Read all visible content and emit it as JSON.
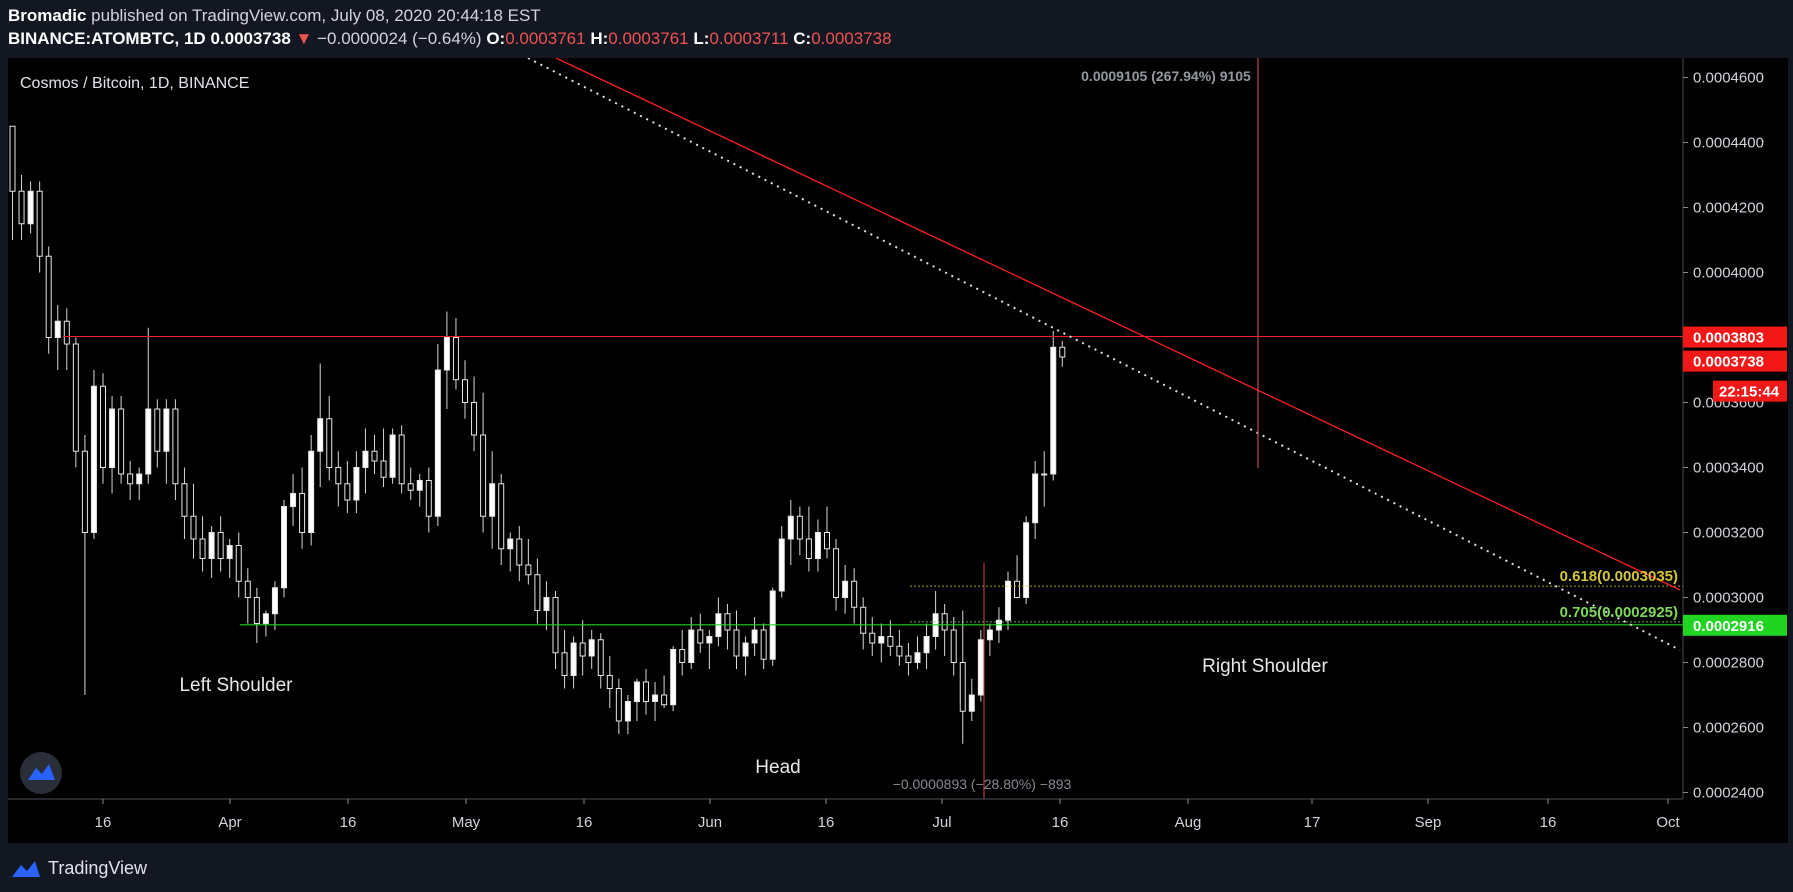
{
  "header": {
    "author": "Bromadic",
    "published_text": "published on TradingView.com, July 08, 2020 20:44:18 EST",
    "symbol": "BINANCE:ATOMBTC, 1D",
    "last_price": "0.0003738",
    "change_arrow": "▼",
    "change": "−0.0000024 (−0.64%)",
    "o_label": "O:",
    "o_value": "0.0003761",
    "h_label": "H:",
    "h_value": "0.0003761",
    "l_label": "L:",
    "l_value": "0.0003711",
    "c_label": "C:",
    "c_value": "0.0003738"
  },
  "footer": {
    "brand": "TradingView"
  },
  "chart_data": {
    "type": "candlestick",
    "title": "Cosmos / Bitcoin, 1D, BINANCE",
    "ylim": [
      0.000238,
      0.000466
    ],
    "y_ticks": [
      "0.0004600",
      "0.0004400",
      "0.0004200",
      "0.0004000",
      "0.0003600",
      "0.0003400",
      "0.0003200",
      "0.0003000",
      "0.0002800",
      "0.0002600",
      "0.0002400"
    ],
    "x_ticks": [
      "16",
      "Apr",
      "16",
      "May",
      "16",
      "Jun",
      "16",
      "Jul",
      "16",
      "Aug",
      "17",
      "Sep",
      "16",
      "Oct"
    ],
    "price_labels": [
      {
        "text": "0.0003803",
        "value": 0.0003803,
        "color": "#f21818"
      },
      {
        "text": "0.0003738",
        "value": 0.0003738,
        "color": "#f21818"
      },
      {
        "text": "22:15:44",
        "value": 0.0003655,
        "color": "#f21818"
      },
      {
        "text": "0.0002916",
        "value": 0.0002916,
        "color": "#22d422"
      }
    ],
    "horizontal_levels": [
      {
        "value": 0.0003803,
        "color": "#ff1f1f"
      },
      {
        "value": 0.0002916,
        "color": "#22d422"
      }
    ],
    "fib_levels": [
      {
        "label": "0.618(0.0003035)",
        "value": 0.0003035,
        "color": "#d6c43a"
      },
      {
        "label": "0.705(0.0002925)",
        "value": 0.0002925,
        "color": "#7ed957"
      }
    ],
    "annotations": [
      "Left Shoulder",
      "Head",
      "Right Shoulder"
    ],
    "measure_top": "0.0009105 (267.94%) 9105",
    "measure_bottom": "−0.0000893 (−28.80%) −893",
    "candles": [
      [
        0.000445,
        0.000445,
        0.00041,
        0.000425
      ],
      [
        0.000425,
        0.00043,
        0.00041,
        0.000415
      ],
      [
        0.000415,
        0.000428,
        0.000412,
        0.000425
      ],
      [
        0.000425,
        0.000428,
        0.0004,
        0.000405
      ],
      [
        0.000405,
        0.000408,
        0.000375,
        0.00038
      ],
      [
        0.00038,
        0.00039,
        0.00037,
        0.000385
      ],
      [
        0.000385,
        0.000389,
        0.00037,
        0.000378
      ],
      [
        0.000378,
        0.00038,
        0.00034,
        0.000345
      ],
      [
        0.000345,
        0.00035,
        0.00027,
        0.00032
      ],
      [
        0.00032,
        0.00037,
        0.000318,
        0.000365
      ],
      [
        0.000365,
        0.000369,
        0.000335,
        0.00034
      ],
      [
        0.00034,
        0.000362,
        0.000332,
        0.000358
      ],
      [
        0.000358,
        0.000362,
        0.000335,
        0.000338
      ],
      [
        0.000338,
        0.000342,
        0.00033,
        0.000335
      ],
      [
        0.000335,
        0.00034,
        0.00033,
        0.000338
      ],
      [
        0.000338,
        0.000383,
        0.000335,
        0.000358
      ],
      [
        0.000358,
        0.000361,
        0.00034,
        0.000345
      ],
      [
        0.000345,
        0.000361,
        0.000335,
        0.000358
      ],
      [
        0.000358,
        0.000361,
        0.00033,
        0.000335
      ],
      [
        0.000335,
        0.00034,
        0.000318,
        0.000325
      ],
      [
        0.000325,
        0.000335,
        0.000312,
        0.000318
      ],
      [
        0.000318,
        0.000325,
        0.000308,
        0.000312
      ],
      [
        0.000312,
        0.000322,
        0.000306,
        0.00032
      ],
      [
        0.00032,
        0.000325,
        0.000308,
        0.000312
      ],
      [
        0.000312,
        0.000318,
        0.000306,
        0.000316
      ],
      [
        0.000316,
        0.00032,
        0.0003,
        0.000305
      ],
      [
        0.000305,
        0.000309,
        0.000292,
        0.0003
      ],
      [
        0.0003,
        0.000303,
        0.000286,
        0.000292
      ],
      [
        0.000292,
        0.000296,
        0.000288,
        0.000295
      ],
      [
        0.000295,
        0.000305,
        0.00029,
        0.000303
      ],
      [
        0.000303,
        0.00033,
        0.0003,
        0.000328
      ],
      [
        0.000328,
        0.000338,
        0.000322,
        0.000332
      ],
      [
        0.000332,
        0.00034,
        0.000315,
        0.00032
      ],
      [
        0.00032,
        0.00035,
        0.000316,
        0.000345
      ],
      [
        0.000345,
        0.000372,
        0.000334,
        0.000355
      ],
      [
        0.000355,
        0.000362,
        0.000336,
        0.00034
      ],
      [
        0.00034,
        0.000345,
        0.000328,
        0.000335
      ],
      [
        0.000335,
        0.000342,
        0.000326,
        0.00033
      ],
      [
        0.00033,
        0.000345,
        0.000326,
        0.00034
      ],
      [
        0.00034,
        0.000352,
        0.000332,
        0.000345
      ],
      [
        0.000345,
        0.00035,
        0.000338,
        0.000342
      ],
      [
        0.000342,
        0.000352,
        0.000334,
        0.000337
      ],
      [
        0.000337,
        0.000352,
        0.000335,
        0.00035
      ],
      [
        0.00035,
        0.000353,
        0.000332,
        0.000335
      ],
      [
        0.000335,
        0.00034,
        0.00033,
        0.000333
      ],
      [
        0.000333,
        0.000338,
        0.000328,
        0.000336
      ],
      [
        0.000336,
        0.00034,
        0.00032,
        0.000325
      ],
      [
        0.000325,
        0.000378,
        0.000322,
        0.00037
      ],
      [
        0.00037,
        0.000388,
        0.000358,
        0.00038
      ],
      [
        0.00038,
        0.000386,
        0.000364,
        0.000367
      ],
      [
        0.000367,
        0.000373,
        0.000355,
        0.00036
      ],
      [
        0.00036,
        0.000368,
        0.000345,
        0.00035
      ],
      [
        0.00035,
        0.000363,
        0.00032,
        0.000325
      ],
      [
        0.000325,
        0.000345,
        0.000315,
        0.000335
      ],
      [
        0.000335,
        0.000338,
        0.00031,
        0.000315
      ],
      [
        0.000315,
        0.00032,
        0.000308,
        0.000318
      ],
      [
        0.000318,
        0.000322,
        0.000305,
        0.00031
      ],
      [
        0.00031,
        0.000318,
        0.000304,
        0.000307
      ],
      [
        0.000307,
        0.000312,
        0.000292,
        0.000296
      ],
      [
        0.000296,
        0.000305,
        0.00029,
        0.0003
      ],
      [
        0.0003,
        0.000302,
        0.000278,
        0.000283
      ],
      [
        0.000283,
        0.00029,
        0.000272,
        0.000276
      ],
      [
        0.000276,
        0.000288,
        0.000272,
        0.000286
      ],
      [
        0.000286,
        0.000293,
        0.000276,
        0.000282
      ],
      [
        0.000282,
        0.00029,
        0.000278,
        0.000287
      ],
      [
        0.000287,
        0.000289,
        0.000272,
        0.000276
      ],
      [
        0.000276,
        0.000282,
        0.000266,
        0.000272
      ],
      [
        0.000272,
        0.000275,
        0.000258,
        0.000262
      ],
      [
        0.000262,
        0.00027,
        0.000258,
        0.000268
      ],
      [
        0.000268,
        0.000275,
        0.000262,
        0.000274
      ],
      [
        0.000274,
        0.000278,
        0.000264,
        0.000268
      ],
      [
        0.000268,
        0.000274,
        0.000262,
        0.00027
      ],
      [
        0.00027,
        0.000276,
        0.000266,
        0.000267
      ],
      [
        0.000267,
        0.000285,
        0.000265,
        0.000284
      ],
      [
        0.000284,
        0.00029,
        0.000276,
        0.00028
      ],
      [
        0.00028,
        0.000294,
        0.000278,
        0.00029
      ],
      [
        0.00029,
        0.000295,
        0.000283,
        0.000286
      ],
      [
        0.000286,
        0.00029,
        0.000278,
        0.000288
      ],
      [
        0.000288,
        0.0003,
        0.000285,
        0.000295
      ],
      [
        0.000295,
        0.000298,
        0.000284,
        0.00029
      ],
      [
        0.00029,
        0.000296,
        0.000278,
        0.000282
      ],
      [
        0.000282,
        0.000288,
        0.000276,
        0.000286
      ],
      [
        0.000286,
        0.000294,
        0.000282,
        0.00029
      ],
      [
        0.00029,
        0.000292,
        0.000278,
        0.000281
      ],
      [
        0.000281,
        0.000303,
        0.000279,
        0.000302
      ],
      [
        0.000302,
        0.000322,
        0.0003,
        0.000318
      ],
      [
        0.000318,
        0.00033,
        0.00031,
        0.000325
      ],
      [
        0.000325,
        0.000328,
        0.000313,
        0.000318
      ],
      [
        0.000318,
        0.000328,
        0.000308,
        0.000312
      ],
      [
        0.000312,
        0.000324,
        0.000308,
        0.00032
      ],
      [
        0.00032,
        0.000328,
        0.000312,
        0.000315
      ],
      [
        0.000315,
        0.000318,
        0.000296,
        0.0003
      ],
      [
        0.0003,
        0.00031,
        0.000295,
        0.000305
      ],
      [
        0.000305,
        0.000309,
        0.000292,
        0.000297
      ],
      [
        0.000297,
        0.0003,
        0.000284,
        0.000289
      ],
      [
        0.000289,
        0.000294,
        0.000282,
        0.000286
      ],
      [
        0.000286,
        0.000292,
        0.00028,
        0.000288
      ],
      [
        0.000288,
        0.000293,
        0.000282,
        0.000285
      ],
      [
        0.000285,
        0.00029,
        0.000279,
        0.000282
      ],
      [
        0.000282,
        0.000286,
        0.000276,
        0.00028
      ],
      [
        0.00028,
        0.000288,
        0.000278,
        0.000283
      ],
      [
        0.000283,
        0.000292,
        0.000278,
        0.000288
      ],
      [
        0.000288,
        0.000302,
        0.000284,
        0.000295
      ],
      [
        0.000295,
        0.000298,
        0.000282,
        0.00029
      ],
      [
        0.00029,
        0.000294,
        0.000276,
        0.00028
      ],
      [
        0.00028,
        0.000296,
        0.000255,
        0.000265
      ],
      [
        0.000265,
        0.000275,
        0.000262,
        0.00027
      ],
      [
        0.00027,
        0.00029,
        0.000268,
        0.000287
      ],
      [
        0.000287,
        0.000292,
        0.000282,
        0.00029
      ],
      [
        0.00029,
        0.000297,
        0.000286,
        0.000293
      ],
      [
        0.000293,
        0.000308,
        0.00029,
        0.000305
      ],
      [
        0.000305,
        0.000313,
        0.0003,
        0.0003
      ],
      [
        0.0003,
        0.000325,
        0.000298,
        0.000323
      ],
      [
        0.000323,
        0.000342,
        0.000318,
        0.000338
      ],
      [
        0.000338,
        0.000345,
        0.000328,
        0.000338
      ],
      [
        0.000338,
        0.000382,
        0.000336,
        0.000377
      ],
      [
        0.000377,
        0.000379,
        0.000371,
        0.000374
      ]
    ]
  }
}
